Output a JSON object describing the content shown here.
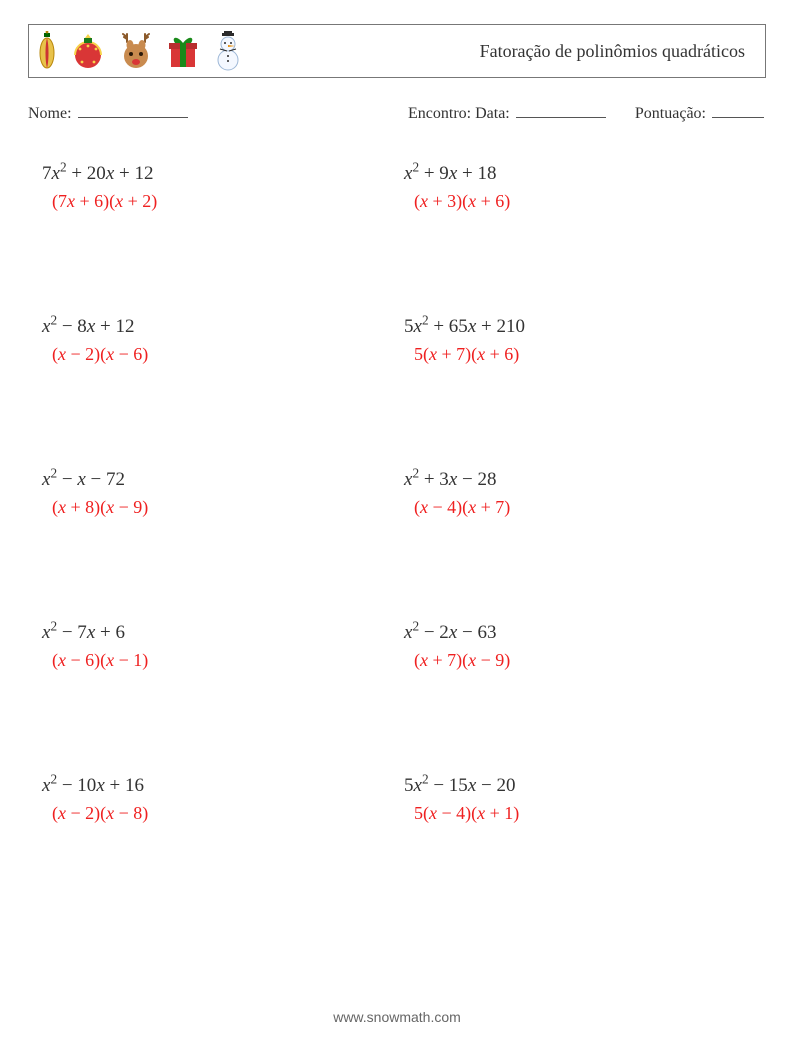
{
  "colors": {
    "page_bg": "#ffffff",
    "text": "#333333",
    "answer": "#ef2020",
    "border": "#777777",
    "blank_line": "#555555",
    "footer": "#666666"
  },
  "fonts": {
    "body_family": "Georgia, 'Times New Roman', serif",
    "title_size_pt": 14,
    "meta_size_pt": 12,
    "expr_size_pt": 14,
    "answer_size_pt": 13,
    "footer_size_pt": 10
  },
  "header": {
    "title": "Fatoração de polinômios quadráticos",
    "icons": [
      "ornament-long",
      "ornament-ball",
      "reindeer",
      "gift-box",
      "snowman"
    ]
  },
  "meta": {
    "name_label": "Nome:",
    "date_label": "Encontro: Data:",
    "score_label": "Pontuação:"
  },
  "problems": [
    {
      "expr": {
        "a": 7,
        "b": 20,
        "c": 12
      },
      "ans": {
        "lead": "",
        "f1_coef": 7,
        "f1_k": 6,
        "f2_coef": 1,
        "f2_k": 2
      }
    },
    {
      "expr": {
        "a": 1,
        "b": 9,
        "c": 18
      },
      "ans": {
        "lead": "",
        "f1_coef": 1,
        "f1_k": 3,
        "f2_coef": 1,
        "f2_k": 6
      }
    },
    {
      "expr": {
        "a": 1,
        "b": -8,
        "c": 12
      },
      "ans": {
        "lead": "",
        "f1_coef": 1,
        "f1_k": -2,
        "f2_coef": 1,
        "f2_k": -6
      }
    },
    {
      "expr": {
        "a": 5,
        "b": 65,
        "c": 210
      },
      "ans": {
        "lead": "5",
        "f1_coef": 1,
        "f1_k": 7,
        "f2_coef": 1,
        "f2_k": 6
      }
    },
    {
      "expr": {
        "a": 1,
        "b": -1,
        "c": -72
      },
      "ans": {
        "lead": "",
        "f1_coef": 1,
        "f1_k": 8,
        "f2_coef": 1,
        "f2_k": -9
      }
    },
    {
      "expr": {
        "a": 1,
        "b": 3,
        "c": -28
      },
      "ans": {
        "lead": "",
        "f1_coef": 1,
        "f1_k": -4,
        "f2_coef": 1,
        "f2_k": 7
      }
    },
    {
      "expr": {
        "a": 1,
        "b": -7,
        "c": 6
      },
      "ans": {
        "lead": "",
        "f1_coef": 1,
        "f1_k": -6,
        "f2_coef": 1,
        "f2_k": -1
      }
    },
    {
      "expr": {
        "a": 1,
        "b": -2,
        "c": -63
      },
      "ans": {
        "lead": "",
        "f1_coef": 1,
        "f1_k": 7,
        "f2_coef": 1,
        "f2_k": -9
      }
    },
    {
      "expr": {
        "a": 1,
        "b": -10,
        "c": 16
      },
      "ans": {
        "lead": "",
        "f1_coef": 1,
        "f1_k": -2,
        "f2_coef": 1,
        "f2_k": -8
      }
    },
    {
      "expr": {
        "a": 5,
        "b": -15,
        "c": -20
      },
      "ans": {
        "lead": "5",
        "f1_coef": 1,
        "f1_k": -4,
        "f2_coef": 1,
        "f2_k": 1
      }
    }
  ],
  "footer": {
    "text": "www.snowmath.com"
  }
}
